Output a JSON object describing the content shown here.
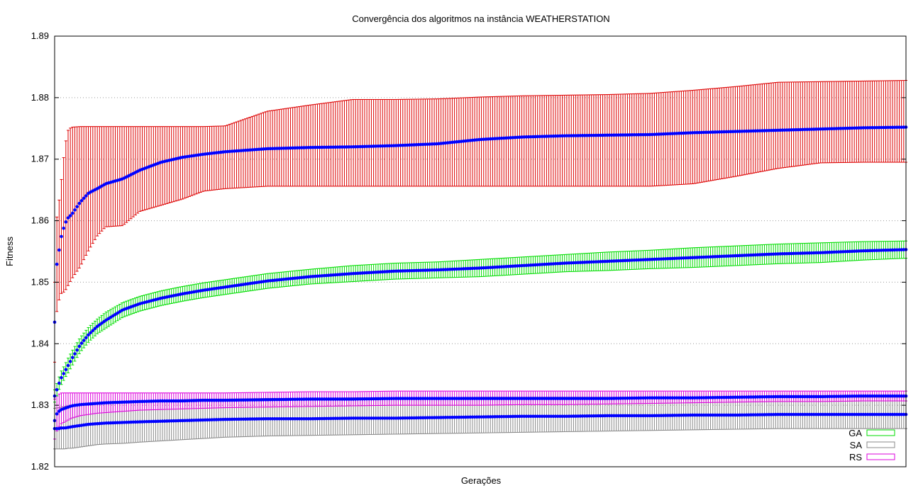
{
  "chart_data": {
    "type": "line",
    "title": "Convergência dos algoritmos na instância WEATHERSTATION",
    "xlabel": "Gerações",
    "ylabel": "Fitness",
    "ylim": [
      1.82,
      1.89
    ],
    "yticks": [
      "1.82",
      "1.83",
      "1.84",
      "1.85",
      "1.86",
      "1.87",
      "1.88",
      "1.89"
    ],
    "x_tick_labels_shown": false,
    "grid": "horizontal dotted",
    "legend_position": "bottom-right",
    "mean_marker_color": "#0000ff",
    "x": [
      0,
      1,
      2,
      3,
      5,
      8,
      12,
      16,
      20,
      30,
      40,
      50,
      60,
      80,
      100,
      125,
      150,
      175,
      200,
      250,
      300,
      350,
      400,
      450,
      500,
      550,
      600,
      650,
      700,
      750,
      800,
      850,
      900,
      950,
      1000
    ],
    "series": [
      {
        "name": "",
        "color": "#dd0000",
        "mean": [
          1.8435,
          1.848,
          1.851,
          1.854,
          1.855,
          1.8575,
          1.8595,
          1.8605,
          1.861,
          1.863,
          1.8645,
          1.8652,
          1.866,
          1.8668,
          1.8682,
          1.8695,
          1.8703,
          1.8708,
          1.8712,
          1.8717,
          1.8719,
          1.872,
          1.8722,
          1.8725,
          1.8732,
          1.8736,
          1.8738,
          1.8739,
          1.874,
          1.8743,
          1.8745,
          1.8747,
          1.8749,
          1.8751,
          1.8752
        ],
        "upper": [
          1.85,
          1.8545,
          1.859,
          1.8615,
          1.863,
          1.8668,
          1.8722,
          1.8748,
          1.8752,
          1.8753,
          1.8753,
          1.8753,
          1.8753,
          1.8753,
          1.8753,
          1.8753,
          1.8753,
          1.8753,
          1.8754,
          1.8778,
          1.8788,
          1.8797,
          1.8797,
          1.8798,
          1.8801,
          1.8803,
          1.8804,
          1.8805,
          1.8807,
          1.8812,
          1.8818,
          1.8825,
          1.8826,
          1.8827,
          1.8828
        ],
        "lower": [
          1.837,
          1.8415,
          1.843,
          1.8465,
          1.847,
          1.8482,
          1.8485,
          1.8495,
          1.8505,
          1.8525,
          1.8552,
          1.8575,
          1.859,
          1.8592,
          1.8615,
          1.8625,
          1.8635,
          1.8648,
          1.8652,
          1.8656,
          1.8656,
          1.8656,
          1.8656,
          1.8656,
          1.8656,
          1.8656,
          1.8656,
          1.8656,
          1.8656,
          1.866,
          1.8672,
          1.8685,
          1.8694,
          1.8695,
          1.8695
        ]
      },
      {
        "name": "GA",
        "color": "#00dd00",
        "mean": [
          1.8315,
          1.8318,
          1.8322,
          1.8327,
          1.8335,
          1.8345,
          1.8355,
          1.8365,
          1.8375,
          1.8398,
          1.8415,
          1.8428,
          1.8438,
          1.8455,
          1.8465,
          1.8474,
          1.8481,
          1.8487,
          1.8492,
          1.8502,
          1.8509,
          1.8514,
          1.8518,
          1.852,
          1.8523,
          1.8527,
          1.8531,
          1.8534,
          1.8537,
          1.854,
          1.8543,
          1.8546,
          1.8548,
          1.8551,
          1.8553
        ],
        "upper": [
          1.8325,
          1.8328,
          1.8332,
          1.8337,
          1.8345,
          1.8356,
          1.8366,
          1.8377,
          1.8387,
          1.841,
          1.8427,
          1.844,
          1.8451,
          1.8467,
          1.8477,
          1.8486,
          1.8493,
          1.8499,
          1.8504,
          1.8514,
          1.8521,
          1.8527,
          1.8531,
          1.8533,
          1.8537,
          1.8541,
          1.8545,
          1.8549,
          1.8552,
          1.8556,
          1.8559,
          1.8562,
          1.8564,
          1.8566,
          1.8567
        ],
        "lower": [
          1.8305,
          1.8308,
          1.8312,
          1.8317,
          1.8325,
          1.8334,
          1.8344,
          1.8353,
          1.8363,
          1.8386,
          1.8403,
          1.8416,
          1.8425,
          1.8443,
          1.8453,
          1.8462,
          1.8469,
          1.8475,
          1.848,
          1.849,
          1.8497,
          1.8501,
          1.8505,
          1.8507,
          1.8509,
          1.8513,
          1.8517,
          1.8519,
          1.8522,
          1.8524,
          1.8527,
          1.853,
          1.8532,
          1.8536,
          1.8539
        ]
      },
      {
        "name": "SA",
        "color": "#888888",
        "mean": [
          1.8262,
          1.8262,
          1.8262,
          1.8262,
          1.8262,
          1.8263,
          1.8263,
          1.8264,
          1.8265,
          1.8267,
          1.8269,
          1.827,
          1.8271,
          1.8272,
          1.8273,
          1.8274,
          1.8275,
          1.8276,
          1.8277,
          1.8278,
          1.8278,
          1.8279,
          1.8279,
          1.828,
          1.8281,
          1.8282,
          1.8282,
          1.8283,
          1.8283,
          1.8284,
          1.8284,
          1.8285,
          1.8285,
          1.8285,
          1.8285
        ],
        "upper": [
          1.8295,
          1.8295,
          1.8295,
          1.8296,
          1.8296,
          1.8297,
          1.8298,
          1.8299,
          1.83,
          1.8302,
          1.8303,
          1.8304,
          1.8305,
          1.8306,
          1.8307,
          1.8308,
          1.8309,
          1.831,
          1.831,
          1.8311,
          1.8311,
          1.8312,
          1.8312,
          1.8312,
          1.8313,
          1.8313,
          1.8313,
          1.8313,
          1.8313,
          1.8313,
          1.8313,
          1.8313,
          1.8313,
          1.8313,
          1.8313
        ],
        "lower": [
          1.8229,
          1.8229,
          1.8229,
          1.8229,
          1.8229,
          1.8229,
          1.8229,
          1.823,
          1.823,
          1.8232,
          1.8234,
          1.8236,
          1.8237,
          1.8238,
          1.824,
          1.8242,
          1.8244,
          1.8246,
          1.8248,
          1.825,
          1.8251,
          1.8252,
          1.8253,
          1.8254,
          1.8255,
          1.8256,
          1.8257,
          1.8258,
          1.8259,
          1.826,
          1.8261,
          1.8262,
          1.8262,
          1.8262,
          1.8262
        ]
      },
      {
        "name": "RS",
        "color": "#dd00dd",
        "mean": [
          1.8275,
          1.828,
          1.8284,
          1.8287,
          1.829,
          1.8293,
          1.8295,
          1.8297,
          1.8299,
          1.8301,
          1.8302,
          1.8303,
          1.8304,
          1.8305,
          1.8306,
          1.8307,
          1.8307,
          1.8308,
          1.8308,
          1.8309,
          1.831,
          1.831,
          1.8311,
          1.8311,
          1.8311,
          1.8311,
          1.8311,
          1.8311,
          1.8312,
          1.8312,
          1.8313,
          1.8314,
          1.8314,
          1.8315,
          1.8315
        ],
        "upper": [
          1.831,
          1.8312,
          1.8314,
          1.8316,
          1.8318,
          1.832,
          1.832,
          1.832,
          1.832,
          1.832,
          1.832,
          1.832,
          1.832,
          1.832,
          1.832,
          1.832,
          1.832,
          1.832,
          1.832,
          1.8321,
          1.8322,
          1.8322,
          1.8323,
          1.8323,
          1.8323,
          1.8323,
          1.8323,
          1.8323,
          1.8323,
          1.8323,
          1.8323,
          1.8323,
          1.8323,
          1.8323,
          1.8323
        ],
        "lower": [
          1.8245,
          1.825,
          1.8255,
          1.826,
          1.8265,
          1.827,
          1.8273,
          1.8276,
          1.8279,
          1.8283,
          1.8285,
          1.8287,
          1.8288,
          1.829,
          1.8292,
          1.8293,
          1.8294,
          1.8295,
          1.8296,
          1.8297,
          1.8298,
          1.8299,
          1.83,
          1.83,
          1.83,
          1.8301,
          1.8301,
          1.8302,
          1.8303,
          1.8304,
          1.8305,
          1.8306,
          1.8306,
          1.8307,
          1.8307
        ]
      }
    ]
  }
}
